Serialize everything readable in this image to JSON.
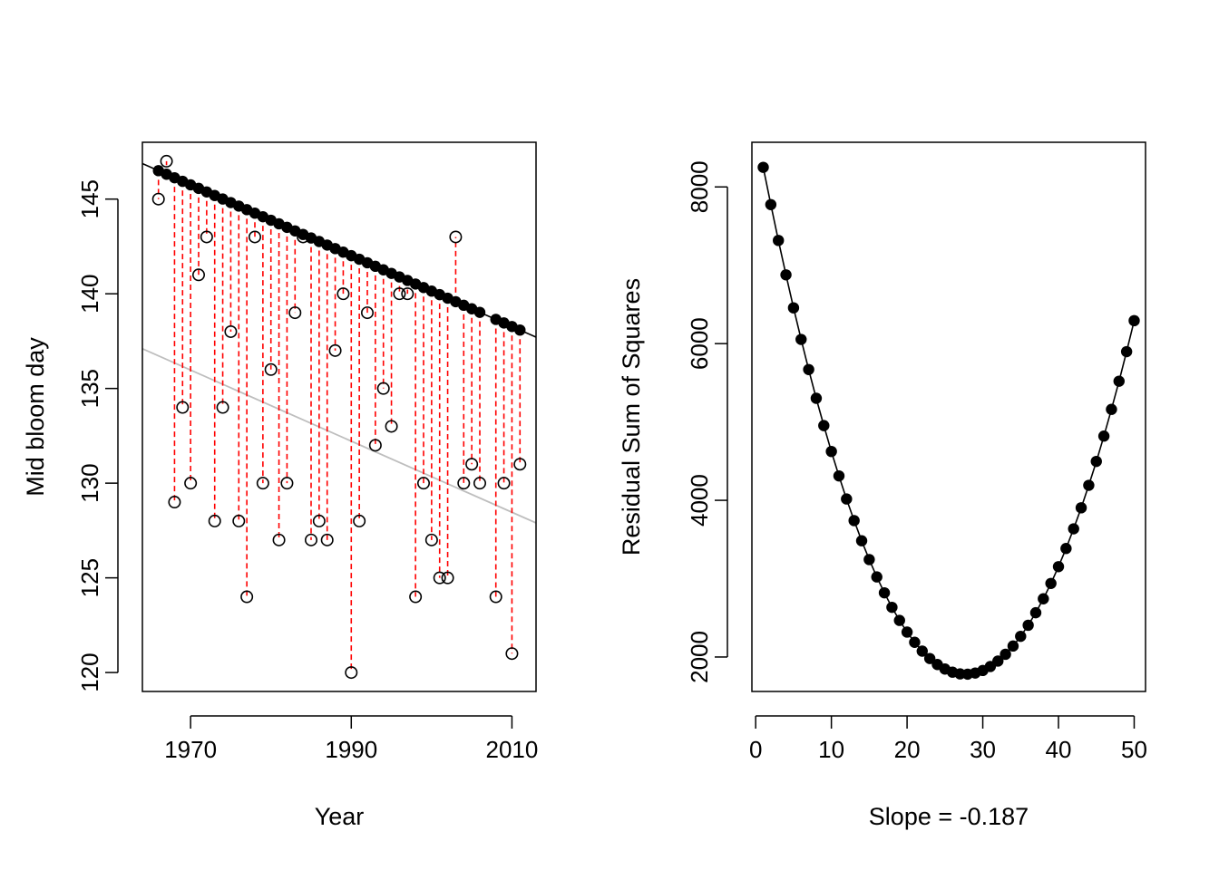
{
  "chart_data": [
    {
      "type": "scatter",
      "title": "",
      "xlabel": "Year",
      "ylabel": "Mid bloom day",
      "xlim": [
        1964,
        2013
      ],
      "ylim": [
        119,
        148
      ],
      "xticks": [
        1970,
        1990,
        2010
      ],
      "yticks": [
        120,
        125,
        130,
        135,
        140,
        145
      ],
      "grid": false,
      "legend": "none",
      "colors": {
        "observed": "#000000",
        "fitted": "#000000",
        "residual": "#ff0000",
        "reference_line": "#bebebe",
        "fit_line": "#000000"
      },
      "observed": {
        "x": [
          1966,
          1967,
          1968,
          1969,
          1970,
          1971,
          1972,
          1973,
          1974,
          1975,
          1976,
          1977,
          1978,
          1979,
          1980,
          1981,
          1982,
          1983,
          1984,
          1985,
          1986,
          1987,
          1988,
          1989,
          1990,
          1991,
          1992,
          1993,
          1994,
          1995,
          1996,
          1997,
          1998,
          1999,
          2000,
          2001,
          2002,
          2003,
          2004,
          2005,
          2006,
          2008,
          2009,
          2010,
          2011
        ],
        "y": [
          145,
          147,
          129,
          134,
          130,
          141,
          143,
          128,
          134,
          138,
          128,
          124,
          143,
          130,
          136,
          127,
          130,
          139,
          143,
          127,
          128,
          127,
          137,
          140,
          120,
          128,
          139,
          132,
          135,
          133,
          140,
          140,
          124,
          130,
          127,
          125,
          125,
          143,
          130,
          131,
          130,
          124,
          130,
          121,
          131
        ]
      },
      "fit_line": {
        "intercept_at_1966": 146.5,
        "slope": -0.187
      },
      "reference_line": {
        "x": [
          1964,
          2013
        ],
        "y": [
          137.1,
          127.9
        ]
      }
    },
    {
      "type": "line",
      "title": "",
      "xlabel": "Slope = -0.187",
      "ylabel": "Residual Sum of Squares",
      "xlim": [
        -0.5,
        51.5
      ],
      "ylim": [
        1560,
        8570
      ],
      "xticks": [
        0,
        10,
        20,
        30,
        40,
        50
      ],
      "yticks": [
        2000,
        4000,
        6000,
        8000
      ],
      "grid": false,
      "legend": "none",
      "colors": {
        "points": "#000000",
        "line": "#000000"
      },
      "points": {
        "x_from": 1,
        "x_to": 50,
        "vertex_x": 27.7,
        "min_y": 1780,
        "y_at_1": 8250
      }
    }
  ]
}
